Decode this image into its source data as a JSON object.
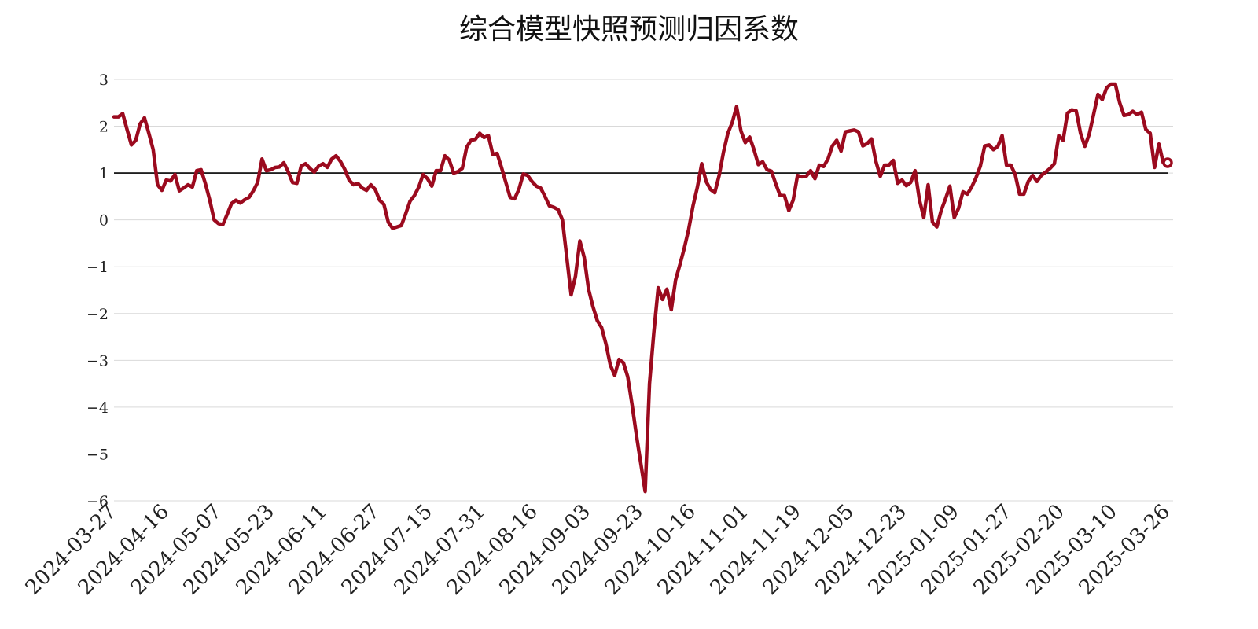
{
  "chart_data": {
    "type": "line",
    "title": "综合模型快照预测归因系数",
    "xlabel": "",
    "ylabel": "",
    "ylim": [
      -6,
      3
    ],
    "yticks": [
      "3",
      "2",
      "1",
      "0",
      "−1",
      "−2",
      "−3",
      "−4",
      "−5",
      "−6"
    ],
    "ytick_values": [
      3,
      2,
      1,
      0,
      -1,
      -2,
      -3,
      -4,
      -5,
      -6
    ],
    "reference_line": 1,
    "grid": "horizontal",
    "line_color": "#9b0a1e",
    "reference_color": "#000000",
    "xticks": [
      "2024-03-27",
      "2024-04-16",
      "2024-05-07",
      "2024-05-23",
      "2024-06-11",
      "2024-06-27",
      "2024-07-15",
      "2024-07-31",
      "2024-08-16",
      "2024-09-03",
      "2024-09-23",
      "2024-10-16",
      "2024-11-01",
      "2024-11-19",
      "2024-12-05",
      "2024-12-23",
      "2025-01-09",
      "2025-01-27",
      "2025-02-20",
      "2025-03-10",
      "2025-03-26"
    ],
    "values": [
      2.2,
      2.2,
      2.27,
      1.93,
      1.6,
      1.7,
      2.05,
      2.18,
      1.85,
      1.5,
      0.75,
      0.63,
      0.85,
      0.83,
      0.97,
      0.62,
      0.68,
      0.75,
      0.7,
      1.05,
      1.07,
      0.77,
      0.42,
      0.0,
      -0.08,
      -0.1,
      0.12,
      0.35,
      0.42,
      0.36,
      0.43,
      0.48,
      0.62,
      0.8,
      1.3,
      1.05,
      1.07,
      1.12,
      1.13,
      1.22,
      1.03,
      0.8,
      0.78,
      1.15,
      1.2,
      1.1,
      1.02,
      1.15,
      1.2,
      1.12,
      1.3,
      1.37,
      1.25,
      1.08,
      0.85,
      0.75,
      0.78,
      0.68,
      0.63,
      0.75,
      0.65,
      0.42,
      0.33,
      -0.05,
      -0.18,
      -0.15,
      -0.12,
      0.13,
      0.4,
      0.52,
      0.7,
      0.97,
      0.88,
      0.72,
      1.05,
      1.05,
      1.37,
      1.28,
      1.0,
      1.03,
      1.1,
      1.55,
      1.7,
      1.72,
      1.85,
      1.76,
      1.8,
      1.4,
      1.42,
      1.12,
      0.8,
      0.48,
      0.45,
      0.65,
      0.98,
      0.95,
      0.82,
      0.72,
      0.68,
      0.5,
      0.3,
      0.27,
      0.22,
      0.0,
      -0.8,
      -1.6,
      -1.2,
      -0.45,
      -0.8,
      -1.48,
      -1.85,
      -2.15,
      -2.3,
      -2.65,
      -3.1,
      -3.32,
      -2.98,
      -3.05,
      -3.35,
      -3.95,
      -4.6,
      -5.2,
      -5.8,
      -3.5,
      -2.4,
      -1.45,
      -1.7,
      -1.48,
      -1.92,
      -1.28,
      -0.95,
      -0.6,
      -0.2,
      0.3,
      0.7,
      1.2,
      0.82,
      0.65,
      0.58,
      0.95,
      1.45,
      1.85,
      2.08,
      2.42,
      1.9,
      1.65,
      1.77,
      1.5,
      1.18,
      1.24,
      1.07,
      1.04,
      0.77,
      0.52,
      0.52,
      0.2,
      0.42,
      0.95,
      0.92,
      0.93,
      1.05,
      0.88,
      1.17,
      1.14,
      1.3,
      1.58,
      1.7,
      1.47,
      1.88,
      1.9,
      1.92,
      1.88,
      1.58,
      1.63,
      1.73,
      1.25,
      0.93,
      1.17,
      1.17,
      1.27,
      0.78,
      0.85,
      0.73,
      0.8,
      1.05,
      0.43,
      0.05,
      0.75,
      -0.05,
      -0.15,
      0.2,
      0.45,
      0.72,
      0.05,
      0.25,
      0.6,
      0.55,
      0.7,
      0.9,
      1.15,
      1.58,
      1.6,
      1.5,
      1.57,
      1.8,
      1.17,
      1.17,
      0.97,
      0.55,
      0.55,
      0.82,
      0.95,
      0.82,
      0.95,
      1.02,
      1.1,
      1.2,
      1.8,
      1.7,
      2.28,
      2.35,
      2.33,
      1.85,
      1.57,
      1.83,
      2.25,
      2.68,
      2.57,
      2.82,
      2.9,
      2.9,
      2.5,
      2.23,
      2.25,
      2.32,
      2.25,
      2.3,
      1.93,
      1.85,
      1.12,
      1.62,
      1.22,
      1.22
    ]
  }
}
